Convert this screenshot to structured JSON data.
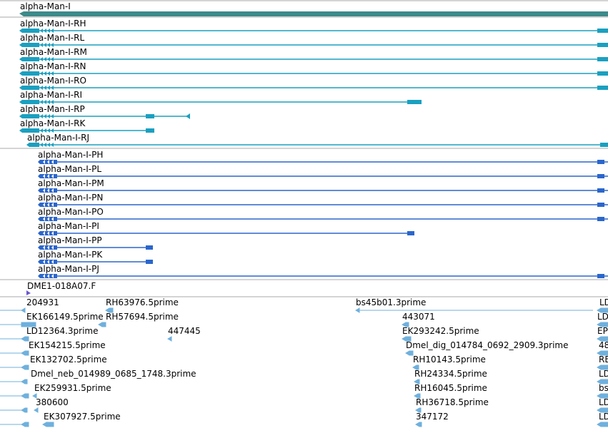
{
  "colors": {
    "gene": "#3d8a8a",
    "transcript": "#1aa0c0",
    "protein": "#2b66cc",
    "est": "#6fb0dd",
    "est_dark": "#8aaec8",
    "divider": "#aaaaaa",
    "clone": "#6a5acd"
  },
  "gene": {
    "label": "alpha-Man-I"
  },
  "transcripts": [
    {
      "label": "alpha-Man-I-RH",
      "extent": "full"
    },
    {
      "label": "alpha-Man-I-RL",
      "extent": "full"
    },
    {
      "label": "alpha-Man-I-RM",
      "extent": "full"
    },
    {
      "label": "alpha-Man-I-RN",
      "extent": "full"
    },
    {
      "label": "alpha-Man-I-RO",
      "extent": "full"
    },
    {
      "label": "alpha-Man-I-RI",
      "extent": "mid"
    },
    {
      "label": "alpha-Man-I-RP",
      "extent": "short_arrow"
    },
    {
      "label": "alpha-Man-I-RK",
      "extent": "short"
    },
    {
      "label": "alpha-Man-I-RJ",
      "extent": "full"
    }
  ],
  "proteins": [
    {
      "label": "alpha-Man-I-PH",
      "extent": "full"
    },
    {
      "label": "alpha-Man-I-PL",
      "extent": "full"
    },
    {
      "label": "alpha-Man-I-PM",
      "extent": "full"
    },
    {
      "label": "alpha-Man-I-PN",
      "extent": "full"
    },
    {
      "label": "alpha-Man-I-PO",
      "extent": "full"
    },
    {
      "label": "alpha-Man-I-PI",
      "extent": "mid"
    },
    {
      "label": "alpha-Man-I-PP",
      "extent": "short"
    },
    {
      "label": "alpha-Man-I-PK",
      "extent": "short"
    },
    {
      "label": "alpha-Man-I-PJ",
      "extent": "full"
    }
  ],
  "clone": {
    "label": "DME1-018A07.F"
  },
  "est_labels": [
    "204931",
    "RH63976.5prime",
    "bs45b01.3prime",
    "LD",
    "EK166149.5prime",
    "RH57694.5prime",
    "443071",
    "LD",
    "LD12364.3prime",
    "447445",
    "EK293242.5prime",
    "EP",
    "EK154215.5prime",
    "Dmel_dig_014784_0692_2909.3prime",
    "48",
    "EK132702.5prime",
    "RH10143.5prime",
    "RE",
    "Dmel_neb_014989_0685_1748.3prime",
    "RH24334.5prime",
    "LD",
    "EK259931.5prime",
    "RH16045.5prime",
    "bs",
    "380600",
    "RH36718.5prime",
    "LD",
    "EK307927.5prime",
    "347172",
    "LD"
  ]
}
